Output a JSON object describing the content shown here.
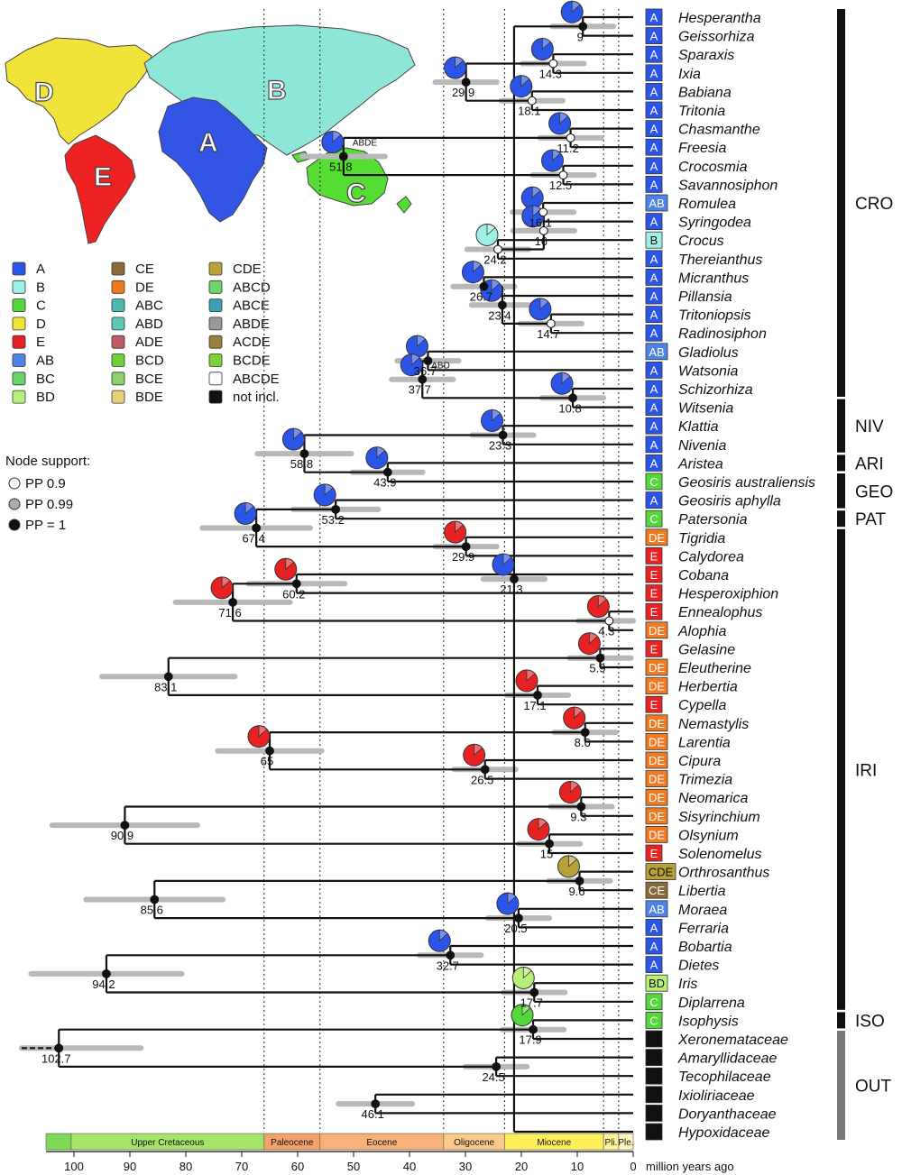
{
  "map": {
    "regions": [
      {
        "label": "D",
        "color": "#f2e33a"
      },
      {
        "label": "B",
        "color": "#8ee6d8"
      },
      {
        "label": "A",
        "color": "#3355e6"
      },
      {
        "label": "E",
        "color": "#ee2222"
      },
      {
        "label": "C",
        "color": "#55dd33"
      }
    ]
  },
  "legend": {
    "items": [
      {
        "code": "A",
        "color": "#2b55e8"
      },
      {
        "code": "B",
        "color": "#9ff0e6"
      },
      {
        "code": "C",
        "color": "#55d63a"
      },
      {
        "code": "D",
        "color": "#f2e33a"
      },
      {
        "code": "E",
        "color": "#e82222"
      },
      {
        "code": "AB",
        "color": "#4f82e6"
      },
      {
        "code": "BC",
        "color": "#6ad46a"
      },
      {
        "code": "BD",
        "color": "#b8ef7a"
      },
      {
        "code": "CE",
        "color": "#8a6a3a"
      },
      {
        "code": "DE",
        "color": "#f07a22"
      },
      {
        "code": "ABC",
        "color": "#4cb8b0"
      },
      {
        "code": "ABD",
        "color": "#5cc8b8"
      },
      {
        "code": "ADE",
        "color": "#c05a66"
      },
      {
        "code": "BCD",
        "color": "#6fcf3a"
      },
      {
        "code": "BCE",
        "color": "#8ed06a"
      },
      {
        "code": "BDE",
        "color": "#e8d07a"
      },
      {
        "code": "CDE",
        "color": "#b8a03a"
      },
      {
        "code": "ABCD",
        "color": "#6cd66c"
      },
      {
        "code": "ABCE",
        "color": "#3aa0b8"
      },
      {
        "code": "ABDE",
        "color": "#999999"
      },
      {
        "code": "ACDE",
        "color": "#9a8040"
      },
      {
        "code": "BCDE",
        "color": "#7ecf3a"
      },
      {
        "code": "ABCDE",
        "color": "#ffffff"
      },
      {
        "code": "not incl.",
        "color": "#111111"
      }
    ],
    "support_title": "Node support:",
    "support": [
      {
        "label": "PP 0.9",
        "fill": "#ffffff"
      },
      {
        "label": "PP 0.99",
        "fill": "#aaaaaa"
      },
      {
        "label": "PP = 1",
        "fill": "#111111"
      }
    ]
  },
  "tips": [
    {
      "name": "Hesperantha",
      "area": "A"
    },
    {
      "name": "Geissorhiza",
      "area": "A"
    },
    {
      "name": "Sparaxis",
      "area": "A"
    },
    {
      "name": "Ixia",
      "area": "A"
    },
    {
      "name": "Babiana",
      "area": "A"
    },
    {
      "name": "Tritonia",
      "area": "A"
    },
    {
      "name": "Chasmanthe",
      "area": "A"
    },
    {
      "name": "Freesia",
      "area": "A"
    },
    {
      "name": "Crocosmia",
      "area": "A"
    },
    {
      "name": "Savannosiphon",
      "area": "A"
    },
    {
      "name": "Romulea",
      "area": "AB"
    },
    {
      "name": "Syringodea",
      "area": "A"
    },
    {
      "name": "Crocus",
      "area": "B"
    },
    {
      "name": "Thereianthus",
      "area": "A"
    },
    {
      "name": "Micranthus",
      "area": "A"
    },
    {
      "name": "Pillansia",
      "area": "A"
    },
    {
      "name": "Tritoniopsis",
      "area": "A"
    },
    {
      "name": "Radinosiphon",
      "area": "A"
    },
    {
      "name": "Gladiolus",
      "area": "AB"
    },
    {
      "name": "Watsonia",
      "area": "A"
    },
    {
      "name": "Schizorhiza",
      "area": "A"
    },
    {
      "name": "Witsenia",
      "area": "A"
    },
    {
      "name": "Klattia",
      "area": "A"
    },
    {
      "name": "Nivenia",
      "area": "A"
    },
    {
      "name": "Aristea",
      "area": "A"
    },
    {
      "name": "Geosiris australiensis",
      "area": "C"
    },
    {
      "name": "Geosiris aphylla",
      "area": "A"
    },
    {
      "name": "Patersonia",
      "area": "C"
    },
    {
      "name": "Tigridia",
      "area": "DE"
    },
    {
      "name": "Calydorea",
      "area": "E"
    },
    {
      "name": "Cobana",
      "area": "E"
    },
    {
      "name": "Hesperoxiphion",
      "area": "E"
    },
    {
      "name": "Ennealophus",
      "area": "E"
    },
    {
      "name": "Alophia",
      "area": "DE"
    },
    {
      "name": "Gelasine",
      "area": "E"
    },
    {
      "name": "Eleutherine",
      "area": "DE"
    },
    {
      "name": "Herbertia",
      "area": "DE"
    },
    {
      "name": "Cypella",
      "area": "E"
    },
    {
      "name": "Nemastylis",
      "area": "DE"
    },
    {
      "name": "Larentia",
      "area": "DE"
    },
    {
      "name": "Cipura",
      "area": "DE"
    },
    {
      "name": "Trimezia",
      "area": "DE"
    },
    {
      "name": "Neomarica",
      "area": "DE"
    },
    {
      "name": "Sisyrinchium",
      "area": "DE"
    },
    {
      "name": "Olsynium",
      "area": "DE"
    },
    {
      "name": "Solenomelus",
      "area": "E"
    },
    {
      "name": "Orthrosanthus",
      "area": "CDE"
    },
    {
      "name": "Libertia",
      "area": "CE"
    },
    {
      "name": "Moraea",
      "area": "AB"
    },
    {
      "name": "Ferraria",
      "area": "A"
    },
    {
      "name": "Bobartia",
      "area": "A"
    },
    {
      "name": "Dietes",
      "area": "A"
    },
    {
      "name": "Iris",
      "area": "BD"
    },
    {
      "name": "Diplarrena",
      "area": "C"
    },
    {
      "name": "Isophysis",
      "area": "C"
    },
    {
      "name": "Xeronemataceae",
      "area": "not incl.",
      "roman": true
    },
    {
      "name": "Amaryllidaceae",
      "area": "not incl.",
      "roman": true
    },
    {
      "name": "Tecophilaceae",
      "area": "not incl.",
      "roman": true
    },
    {
      "name": "Ixioliriaceae",
      "area": "not incl.",
      "roman": true
    },
    {
      "name": "Doryanthaceae",
      "area": "not incl.",
      "roman": true
    },
    {
      "name": "Hypoxidaceae",
      "area": "not incl.",
      "roman": true
    }
  ],
  "clades": [
    {
      "label": "CRO",
      "from": 0,
      "to": 20
    },
    {
      "label": "NIV",
      "from": 21,
      "to": 23
    },
    {
      "label": "ARI",
      "from": 24,
      "to": 24
    },
    {
      "label": "GEO",
      "from": 25,
      "to": 26
    },
    {
      "label": "PAT",
      "from": 27,
      "to": 27
    },
    {
      "label": "IRI",
      "from": 28,
      "to": 53
    },
    {
      "label": "ISO",
      "from": 54,
      "to": 54
    },
    {
      "label": "OUT",
      "from": 55,
      "to": 60
    }
  ],
  "nodes": [
    {
      "age": "9",
      "pp": 1,
      "ma": 9.0,
      "kids": [
        0,
        1
      ]
    },
    {
      "age": "14.3",
      "pp": 0.9,
      "ma": 14.3,
      "kids": [
        2,
        3
      ]
    },
    {
      "age": "18.1",
      "pp": 0.9,
      "ma": 18.1,
      "kids": [
        4,
        5
      ]
    },
    {
      "age": "11.2",
      "pp": 0.9,
      "ma": 11.2,
      "kids": [
        6,
        7
      ]
    },
    {
      "age": "12.5",
      "pp": 0.9,
      "ma": 12.5,
      "kids": [
        8,
        9
      ]
    },
    {
      "age": "16.1",
      "pp": 0.9,
      "ma": 16.1,
      "kids": [
        10,
        11
      ]
    },
    {
      "age": "24.2",
      "pp": 0.9,
      "ma": 24.2,
      "kids": [
        12,
        13
      ]
    },
    {
      "age": "26.7",
      "pp": 1,
      "ma": 26.7,
      "kids": [
        14,
        15
      ]
    },
    {
      "age": "14.7",
      "pp": 0.9,
      "ma": 14.7,
      "kids": [
        16,
        17
      ]
    },
    {
      "age": "36.7",
      "pp": 1,
      "ma": 36.7,
      "kids": [
        18,
        19
      ]
    },
    {
      "age": "10.8",
      "pp": 1,
      "ma": 10.8,
      "kids": [
        20,
        21
      ]
    },
    {
      "age": "23.3",
      "pp": 1,
      "ma": 23.3,
      "kids": [
        22,
        23
      ]
    },
    {
      "age": "43.9",
      "pp": 1,
      "ma": 43.9,
      "kids": [
        24,
        25
      ]
    },
    {
      "age": "53.2",
      "pp": 1,
      "ma": 53.2,
      "kids": [
        26,
        27
      ]
    },
    {
      "age": "29.9",
      "pp": 1,
      "ma": 29.9,
      "kids": [
        28,
        29
      ]
    },
    {
      "age": "60.2",
      "pp": 1,
      "ma": 60.2,
      "kids": [
        30,
        31
      ]
    },
    {
      "age": "4.3",
      "pp": 0.9,
      "ma": 4.3,
      "kids": [
        32,
        33
      ]
    },
    {
      "age": "5.9",
      "pp": 1,
      "ma": 5.9,
      "kids": [
        34,
        35
      ]
    },
    {
      "age": "17.1",
      "pp": 1,
      "ma": 17.1,
      "kids": [
        36,
        37
      ]
    },
    {
      "age": "8.6",
      "pp": 1,
      "ma": 8.6,
      "kids": [
        38,
        39
      ]
    },
    {
      "age": "26.5",
      "pp": 1,
      "ma": 26.5,
      "kids": [
        40,
        41
      ]
    },
    {
      "age": "9.3",
      "pp": 1,
      "ma": 9.3,
      "kids": [
        42,
        43
      ]
    },
    {
      "age": "15",
      "pp": 1,
      "ma": 15.0,
      "kids": [
        44,
        45
      ]
    },
    {
      "age": "9.6",
      "pp": 1,
      "ma": 9.6,
      "kids": [
        46,
        47
      ]
    },
    {
      "age": "20.5",
      "pp": 1,
      "ma": 20.5,
      "kids": [
        48,
        49
      ]
    },
    {
      "age": "32.7",
      "pp": 1,
      "ma": 32.7,
      "kids": [
        50,
        51
      ]
    },
    {
      "age": "17.7",
      "pp": 1,
      "ma": 17.7,
      "kids": [
        52,
        53
      ]
    },
    {
      "age": "17.9",
      "pp": 1,
      "ma": 17.9,
      "kids": [
        54,
        55
      ]
    },
    {
      "age": "24.5",
      "pp": 1,
      "ma": 24.5,
      "kids": [
        56,
        57
      ]
    },
    {
      "age": "46.1",
      "pp": 1,
      "ma": 46.1,
      "kids": [
        58,
        59
      ]
    },
    {
      "age": "21.3",
      "pp": 1,
      "ma": 21.3,
      "kids": [
        60,
        61
      ]
    },
    {
      "age": "29.9",
      "pp": 1,
      "ma": 29.9,
      "kids": [
        62,
        63
      ]
    },
    {
      "age": "51.8",
      "pp": 1,
      "ma": 51.8,
      "kids": [
        64,
        65
      ],
      "note": "ABDE"
    },
    {
      "age": "16",
      "pp": 0.9,
      "ma": 16.0,
      "kids": [
        66,
        67
      ]
    },
    {
      "age": "23.4",
      "pp": 1,
      "ma": 23.4,
      "kids": [
        68,
        69
      ]
    },
    {
      "age": "37.7",
      "pp": 1,
      "ma": 37.7,
      "kids": [
        70,
        71
      ],
      "note": "ABD"
    },
    {
      "age": "58.8",
      "pp": 1,
      "ma": 58.8,
      "kids": [
        72,
        73
      ]
    },
    {
      "age": "67.4",
      "pp": 1,
      "ma": 67.4,
      "kids": [
        74,
        75
      ]
    },
    {
      "age": "71.6",
      "pp": 1,
      "ma": 71.6,
      "kids": [
        76,
        77
      ]
    },
    {
      "age": "83.1",
      "pp": 1,
      "ma": 83.1,
      "kids": [
        78,
        79
      ]
    },
    {
      "age": "65",
      "pp": 1,
      "ma": 65.0,
      "kids": [
        80,
        81
      ]
    },
    {
      "age": "90.9",
      "pp": 1,
      "ma": 90.9,
      "kids": [
        82,
        83
      ]
    },
    {
      "age": "85.6",
      "pp": 1,
      "ma": 85.6,
      "kids": [
        84,
        85
      ]
    },
    {
      "age": "94.2",
      "pp": 1,
      "ma": 94.2,
      "kids": [
        86,
        87
      ]
    },
    {
      "age": "102.7",
      "pp": 1,
      "ma": 102.7,
      "kids": [
        88,
        89
      ]
    }
  ],
  "axis": {
    "label": "million years ago",
    "ticks": [
      "100",
      "90",
      "80",
      "70",
      "60",
      "50",
      "40",
      "30",
      "20",
      "10",
      "0"
    ],
    "epochs": [
      {
        "name": "",
        "from": 105,
        "to": 100.5,
        "color": "#7ed957"
      },
      {
        "name": "Upper Cretaceous",
        "from": 100.5,
        "to": 66,
        "color": "#a6e36a"
      },
      {
        "name": "Paleocene",
        "from": 66,
        "to": 56,
        "color": "#f5a36a"
      },
      {
        "name": "Eocene",
        "from": 56,
        "to": 33.9,
        "color": "#f7b27a"
      },
      {
        "name": "Oligocene",
        "from": 33.9,
        "to": 23,
        "color": "#fbc98a"
      },
      {
        "name": "Miocene",
        "from": 23,
        "to": 5.3,
        "color": "#fff05a"
      },
      {
        "name": "Pli.",
        "from": 5.3,
        "to": 2.6,
        "color": "#fff59a"
      },
      {
        "name": "Ple.",
        "from": 2.6,
        "to": 0,
        "color": "#fff8c4"
      }
    ]
  }
}
